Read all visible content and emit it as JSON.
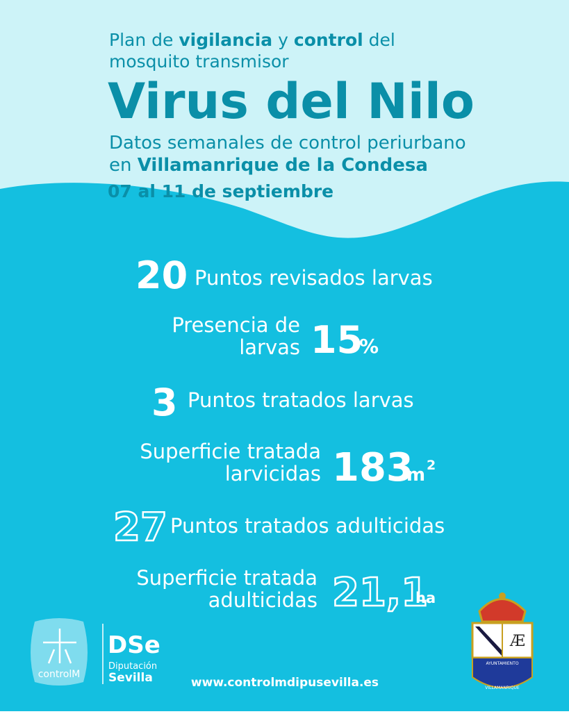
{
  "header": {
    "intro": [
      "Plan de ",
      "vigilancia",
      " y ",
      "control",
      " del"
    ],
    "intro_line2": "mosquito transmisor",
    "title": "Virus del Nilo",
    "subtitle": "Datos semanales de control periurbano",
    "subtitle_line2": [
      "en ",
      "Villamanrique de la Condesa"
    ],
    "date": "07 al 11 de septiembre"
  },
  "stats": [
    {
      "value": 20,
      "label": "Puntos revisados larvas"
    },
    {
      "label": [
        "Presencia de",
        "larvas"
      ],
      "value": 15,
      "unit": "%"
    },
    {
      "value": 3,
      "label": "Puntos tratados larvas"
    },
    {
      "label": [
        "Superficie tratada",
        "larvicidas"
      ],
      "value": 183,
      "unit": "m",
      "unit_power": "2"
    },
    {
      "value": 27,
      "label": "Puntos tratados adulticidas"
    },
    {
      "label": [
        "Superficie tratada",
        "adulticidas"
      ],
      "value": "21,1",
      "unit": "ha"
    }
  ],
  "footer": {
    "controlm": "controlM",
    "dse": "DSe",
    "diputacion": "Diputación",
    "sevilla": "Sevilla",
    "url": "www.controlmdipusevilla.es",
    "coat_top": "AYUNTAMIENTO",
    "coat_bottom": "VILLAMANRIQUE",
    "coat_letters": "Æ"
  }
}
